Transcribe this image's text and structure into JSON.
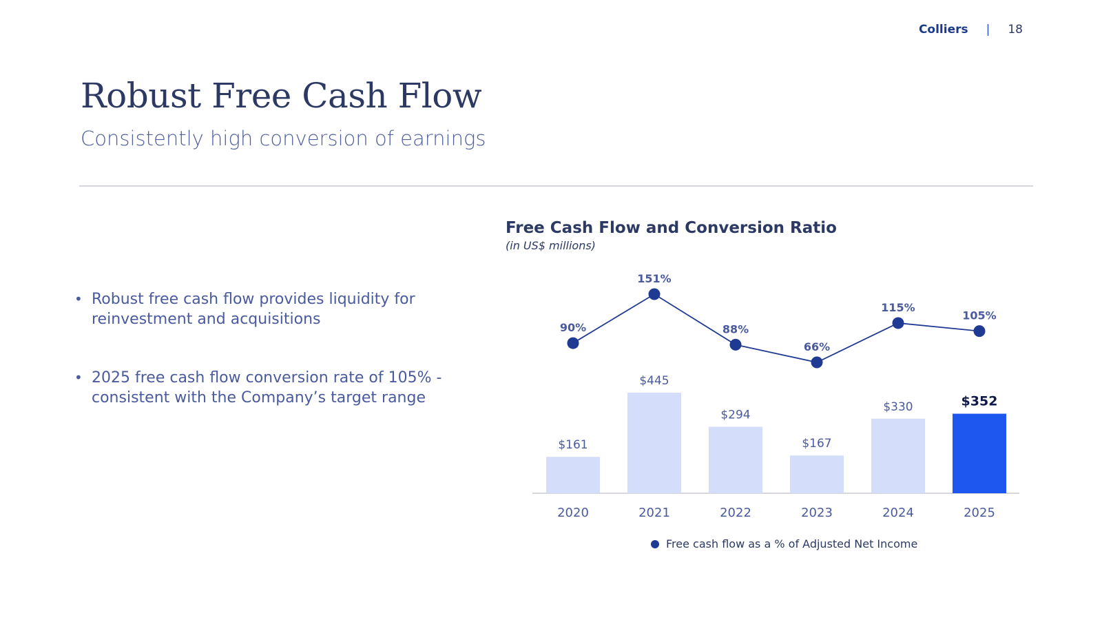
{
  "header": {
    "brand": "Colliers",
    "separator": "|",
    "page_number": "18"
  },
  "title": "Robust Free Cash Flow",
  "subtitle": "Consistently high conversion of earnings",
  "bullets": [
    "Robust free cash flow provides liquidity for reinvestment and acquisitions",
    "2025 free cash flow conversion rate of 105% - consistent with the Company’s target range"
  ],
  "colors": {
    "bar": "#d4ddf9",
    "bar_highlight": "#1e56f0",
    "line": "#1f3a93",
    "text": "#2c3a63"
  },
  "chart_data": {
    "type": "bar",
    "title": "Free Cash Flow and Conversion Ratio",
    "subtitle": "(in US$ millions)",
    "categories": [
      "2020",
      "2021",
      "2022",
      "2023",
      "2024",
      "2025"
    ],
    "series": [
      {
        "type": "bar",
        "values": [
          161,
          445,
          294,
          167,
          330,
          352
        ],
        "labels": [
          "$161",
          "$445",
          "$294",
          "$167",
          "$330",
          "$352"
        ],
        "highlight_index": 5
      },
      {
        "name": "Free cash flow as a % of Adjusted Net Income",
        "type": "line",
        "values": [
          90,
          151,
          88,
          66,
          115,
          105
        ],
        "labels": [
          "90%",
          "151%",
          "88%",
          "66%",
          "115%",
          "105%"
        ]
      }
    ],
    "legend_position": "bottom",
    "grid": false
  }
}
